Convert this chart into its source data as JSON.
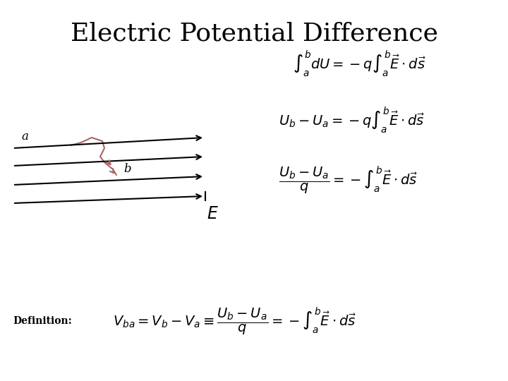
{
  "title": "Electric Potential Difference",
  "title_fontsize": 26,
  "background_color": "#ffffff",
  "eq1": "$\\int_{a}^{b} dU = -q\\int_{a}^{b} \\vec{E} \\cdot d\\vec{s}$",
  "eq2": "$U_b - U_a = -q\\int_{a}^{b} \\vec{E} \\cdot d\\vec{s}$",
  "eq3": "$\\dfrac{U_b - U_a}{q} = -\\int_{a}^{b} \\vec{E} \\cdot d\\vec{s}$",
  "eq4": "$V_{ba} = V_b - V_a \\equiv \\dfrac{U_b - U_a}{q} = -\\int_{a}^{b} \\vec{E} \\cdot d\\vec{s}$",
  "definition_label": "Definition:",
  "E_label": "$E$",
  "a_label": "a",
  "b_label": "b",
  "eq_fontsize": 14,
  "definition_fontsize": 10,
  "line_color": "#000000",
  "path_color": "#aa6666"
}
